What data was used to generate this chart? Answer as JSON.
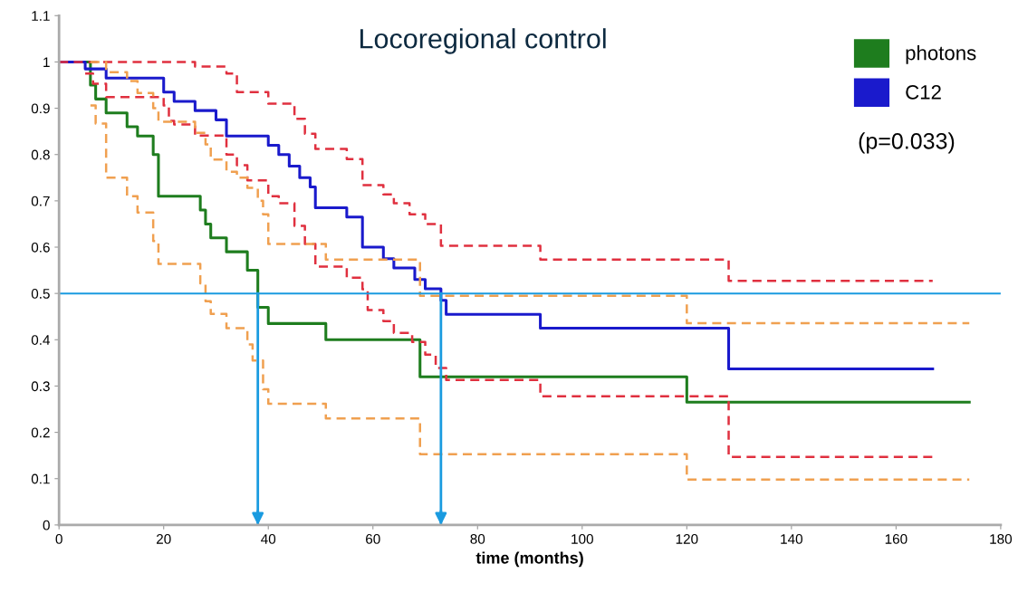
{
  "chart_data": {
    "type": "step",
    "title": "Locoregional control",
    "xlabel": "time (months)",
    "xlim": [
      0,
      180
    ],
    "xticks": [
      0,
      20,
      40,
      60,
      80,
      100,
      120,
      140,
      160,
      180
    ],
    "ylim": [
      0,
      1.1
    ],
    "yticks": [
      0,
      0.1,
      0.2,
      0.3,
      0.4,
      0.5,
      0.6,
      0.7,
      0.8,
      0.9,
      1,
      1.1
    ],
    "grid": false,
    "legend": "top right",
    "marker": "none",
    "annotations": [
      "(p=0.033)"
    ],
    "ref_lines": [
      {
        "axis": "y",
        "value": 0.5,
        "color": "#1a9be0",
        "line_style": "solid"
      },
      {
        "axis": "x",
        "value": 38,
        "color": "#1a9be0",
        "line_style": "solid"
      },
      {
        "axis": "x",
        "value": 73,
        "color": "#1a9be0",
        "line_style": "solid"
      }
    ],
    "series": [
      {
        "name": "photons",
        "color": "#1e7d1e",
        "line_style": "solid",
        "x": [
          0,
          6,
          7,
          9,
          13,
          15,
          18,
          19,
          27,
          28,
          29,
          32,
          36,
          38,
          40,
          51,
          69,
          120,
          174
        ],
        "values": [
          1,
          0.95,
          0.92,
          0.89,
          0.86,
          0.84,
          0.8,
          0.71,
          0.68,
          0.65,
          0.62,
          0.59,
          0.55,
          0.47,
          0.435,
          0.4,
          0.32,
          0.265,
          0.265
        ]
      },
      {
        "name": "C12",
        "color": "#1a1acc",
        "line_style": "solid",
        "x": [
          0,
          5,
          9,
          20,
          22,
          26,
          30,
          32,
          35,
          40,
          42,
          44,
          46,
          48,
          49,
          55,
          58,
          62,
          64,
          68,
          70,
          73,
          74,
          92,
          128,
          167
        ],
        "values": [
          1,
          0.985,
          0.965,
          0.935,
          0.915,
          0.895,
          0.875,
          0.84,
          0.84,
          0.82,
          0.8,
          0.775,
          0.75,
          0.73,
          0.685,
          0.665,
          0.6,
          0.575,
          0.555,
          0.53,
          0.51,
          0.485,
          0.455,
          0.425,
          0.337,
          0.337
        ]
      },
      {
        "color": "#e0303f",
        "line_style": "dashed",
        "x": [
          0,
          26,
          32,
          34,
          40,
          45,
          47,
          49,
          55,
          58,
          62,
          64,
          67,
          70,
          73,
          92,
          128,
          167
        ],
        "values": [
          1,
          0.99,
          0.975,
          0.935,
          0.91,
          0.877,
          0.845,
          0.812,
          0.79,
          0.734,
          0.714,
          0.695,
          0.671,
          0.65,
          0.603,
          0.573,
          0.527,
          0.527
        ]
      },
      {
        "color": "#e0303f",
        "line_style": "dashed",
        "x": [
          5,
          6.5,
          9,
          20,
          21,
          22,
          26,
          32,
          34,
          36,
          40,
          42,
          45,
          47,
          49,
          55,
          58,
          59,
          62,
          64,
          67.5,
          70,
          72,
          74,
          92,
          128,
          167
        ],
        "values": [
          0.975,
          0.953,
          0.924,
          0.906,
          0.873,
          0.865,
          0.841,
          0.8,
          0.777,
          0.744,
          0.71,
          0.695,
          0.646,
          0.607,
          0.558,
          0.534,
          0.509,
          0.464,
          0.44,
          0.415,
          0.395,
          0.368,
          0.339,
          0.313,
          0.278,
          0.147,
          0.147
        ]
      },
      {
        "color": "#f0a050",
        "line_style": "dashed",
        "x": [
          6,
          9,
          13,
          15,
          18,
          19,
          26,
          28,
          29,
          32,
          34,
          36,
          38,
          39,
          40,
          51,
          69,
          120,
          174
        ],
        "values": [
          1,
          0.978,
          0.959,
          0.933,
          0.9,
          0.871,
          0.847,
          0.822,
          0.789,
          0.763,
          0.75,
          0.728,
          0.7,
          0.671,
          0.607,
          0.573,
          0.495,
          0.436,
          0.436
        ]
      },
      {
        "color": "#f0a050",
        "line_style": "dashed",
        "x": [
          6,
          7,
          9,
          13,
          15,
          18,
          19,
          27,
          28,
          29,
          32,
          36,
          37,
          39,
          40,
          51,
          69,
          120,
          174
        ],
        "values": [
          0.906,
          0.867,
          0.75,
          0.71,
          0.675,
          0.613,
          0.564,
          0.522,
          0.483,
          0.456,
          0.425,
          0.39,
          0.355,
          0.293,
          0.262,
          0.23,
          0.153,
          0.098,
          0.098
        ]
      }
    ]
  }
}
